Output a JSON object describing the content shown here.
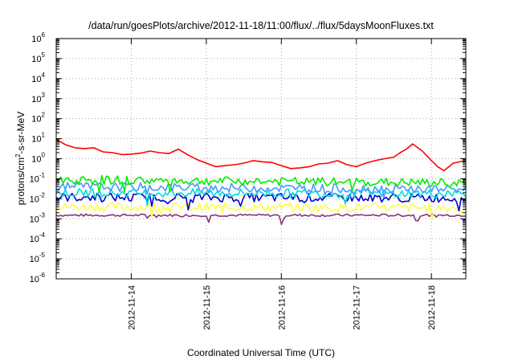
{
  "chart_data": {
    "type": "line",
    "title": "/data/run/goesPlots/archive/2012-11-18/11:00/flux/../flux/5daysMoonFluxes.txt",
    "xlabel": "Coordinated Universal Time (UTC)",
    "ylabel": "protons/cm2-s-sr-MeV",
    "ylabel_parts": {
      "pre": "protons/cm",
      "sup": "2",
      "post": "-s-sr-MeV"
    },
    "yscale": "log",
    "ylim": [
      1e-06,
      1000000.0
    ],
    "y_ticks": [
      {
        "base": "10",
        "exp": "-6"
      },
      {
        "base": "10",
        "exp": "-5"
      },
      {
        "base": "10",
        "exp": "-4"
      },
      {
        "base": "10",
        "exp": "-3"
      },
      {
        "base": "10",
        "exp": "-2"
      },
      {
        "base": "10",
        "exp": "-1"
      },
      {
        "base": "10",
        "exp": "0"
      },
      {
        "base": "10",
        "exp": "1"
      },
      {
        "base": "10",
        "exp": "2"
      },
      {
        "base": "10",
        "exp": "3"
      },
      {
        "base": "10",
        "exp": "4"
      },
      {
        "base": "10",
        "exp": "5"
      },
      {
        "base": "10",
        "exp": "6"
      }
    ],
    "x_ticks": [
      "2012-11-14",
      "2012-11-15",
      "2012-11-16",
      "2012-11-17",
      "2012-11-18"
    ],
    "xlim": [
      "2012-11-13 00:00",
      "2012-11-18 11:00"
    ],
    "grid": true,
    "series": [
      {
        "color": "#ff0000",
        "x": [
          "2012-11-13 00:00",
          "2012-11-13 03:00",
          "2012-11-13 06:00",
          "2012-11-13 09:00",
          "2012-11-13 12:00",
          "2012-11-13 15:00",
          "2012-11-13 18:00",
          "2012-11-13 21:00",
          "2012-11-14 00:00",
          "2012-11-14 03:00",
          "2012-11-14 06:00",
          "2012-11-14 09:00",
          "2012-11-14 12:00",
          "2012-11-14 15:00",
          "2012-11-14 18:00",
          "2012-11-14 21:00",
          "2012-11-15 00:00",
          "2012-11-15 03:00",
          "2012-11-15 06:00",
          "2012-11-15 09:00",
          "2012-11-15 12:00",
          "2012-11-15 15:00",
          "2012-11-15 18:00",
          "2012-11-15 21:00",
          "2012-11-16 00:00",
          "2012-11-16 03:00",
          "2012-11-16 06:00",
          "2012-11-16 09:00",
          "2012-11-16 12:00",
          "2012-11-16 15:00",
          "2012-11-16 18:00",
          "2012-11-16 21:00",
          "2012-11-17 00:00",
          "2012-11-17 03:00",
          "2012-11-17 06:00",
          "2012-11-17 09:00",
          "2012-11-17 12:00",
          "2012-11-17 14:00",
          "2012-11-17 16:00",
          "2012-11-17 18:00",
          "2012-11-17 21:00",
          "2012-11-18 00:00",
          "2012-11-18 02:00",
          "2012-11-18 04:00",
          "2012-11-18 07:00",
          "2012-11-18 11:00"
        ],
        "values": [
          9,
          5,
          3.5,
          3.2,
          3.5,
          2.2,
          2.0,
          1.6,
          1.7,
          1.9,
          2.4,
          2.0,
          1.8,
          3.0,
          1.6,
          0.9,
          0.6,
          0.4,
          0.45,
          0.5,
          0.6,
          0.8,
          0.7,
          0.65,
          0.45,
          0.32,
          0.35,
          0.4,
          0.55,
          0.6,
          0.8,
          0.5,
          0.4,
          0.6,
          0.8,
          1.0,
          1.2,
          2.0,
          3.0,
          5.5,
          2.5,
          0.8,
          0.4,
          0.25,
          0.6,
          0.8
        ]
      },
      {
        "color": "#00ee00",
        "x": [
          "2012-11-13 00:00",
          "2012-11-18 11:00"
        ],
        "values": [
          0.09,
          0.06
        ]
      },
      {
        "color": "#4499ff",
        "x": [
          "2012-11-13 00:00",
          "2012-11-18 11:00"
        ],
        "values": [
          0.04,
          0.03
        ]
      },
      {
        "color": "#00dddd",
        "x": [
          "2012-11-13 00:00",
          "2012-11-18 11:00"
        ],
        "values": [
          0.02,
          0.018
        ]
      },
      {
        "color": "#0000cc",
        "x": [
          "2012-11-13 00:00",
          "2012-11-18 11:00"
        ],
        "values": [
          0.012,
          0.011
        ]
      },
      {
        "color": "#ffff44",
        "x": [
          "2012-11-13 00:00",
          "2012-11-18 11:00"
        ],
        "values": [
          0.004,
          0.0035
        ]
      },
      {
        "color": "#883377",
        "x": [
          "2012-11-13 00:00",
          "2012-11-18 11:00"
        ],
        "values": [
          0.0015,
          0.0015
        ]
      }
    ]
  }
}
